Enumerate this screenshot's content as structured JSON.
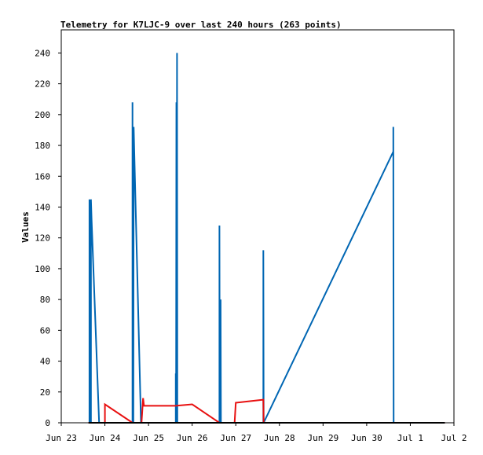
{
  "chart_data": {
    "type": "line",
    "title": "Telemetry for K7LJC-9 over last 240 hours (263 points)",
    "ylabel": "Values",
    "xlabel": "",
    "ylim": [
      0,
      255
    ],
    "xlim": [
      "2024-06-23T00:00",
      "2024-07-02T00:00"
    ],
    "x_ticks": [
      "Jun 23",
      "Jun 24",
      "Jun 25",
      "Jun 26",
      "Jun 27",
      "Jun 28",
      "Jun 29",
      "Jun 30",
      "Jul 1",
      "Jul 2"
    ],
    "y_ticks": [
      0,
      20,
      40,
      60,
      80,
      100,
      120,
      140,
      160,
      180,
      200,
      220,
      240
    ],
    "series": [
      {
        "color": "#0066b3",
        "points": [
          [
            "2024-06-23T15:30",
            0
          ],
          [
            "2024-06-23T15:30",
            145
          ],
          [
            "2024-06-23T15:40",
            0
          ],
          [
            "2024-06-23T16:20",
            0
          ],
          [
            "2024-06-23T16:20",
            145
          ],
          [
            "2024-06-23T16:40",
            132
          ],
          [
            "2024-06-23T20:50",
            0
          ],
          [
            "2024-06-24T15:10",
            0
          ],
          [
            "2024-06-24T15:10",
            208
          ],
          [
            "2024-06-24T15:20",
            0
          ],
          [
            "2024-06-24T15:30",
            32
          ],
          [
            "2024-06-24T15:40",
            0
          ],
          [
            "2024-06-24T15:50",
            192
          ],
          [
            "2024-06-24T16:10",
            175
          ],
          [
            "2024-06-24T19:50",
            0
          ],
          [
            "2024-06-25T15:00",
            0
          ],
          [
            "2024-06-25T15:00",
            32
          ],
          [
            "2024-06-25T15:10",
            0
          ],
          [
            "2024-06-25T15:20",
            208
          ],
          [
            "2024-06-25T15:30",
            0
          ],
          [
            "2024-06-25T15:40",
            240
          ],
          [
            "2024-06-25T15:50",
            0
          ],
          [
            "2024-06-26T15:00",
            0
          ],
          [
            "2024-06-26T15:00",
            128
          ],
          [
            "2024-06-26T15:10",
            0
          ],
          [
            "2024-06-26T15:40",
            80
          ],
          [
            "2024-06-26T15:50",
            0
          ],
          [
            "2024-06-27T15:10",
            0
          ],
          [
            "2024-06-27T15:10",
            112
          ],
          [
            "2024-06-27T15:20",
            0
          ],
          [
            "2024-06-30T14:40",
            176
          ],
          [
            "2024-06-30T14:40",
            192
          ],
          [
            "2024-06-30T14:50",
            0
          ],
          [
            "2024-07-01T19:00",
            0
          ]
        ]
      },
      {
        "color": "#e81010",
        "points": [
          [
            "2024-06-23T15:00",
            0
          ],
          [
            "2024-06-24T00:00",
            0
          ],
          [
            "2024-06-24T00:00",
            12
          ],
          [
            "2024-06-24T15:10",
            0
          ],
          [
            "2024-06-24T20:10",
            0
          ],
          [
            "2024-06-24T21:00",
            16
          ],
          [
            "2024-06-24T21:30",
            11
          ],
          [
            "2024-06-25T15:00",
            11
          ],
          [
            "2024-06-26T00:00",
            12
          ],
          [
            "2024-06-26T15:00",
            0
          ],
          [
            "2024-06-26T23:20",
            0
          ],
          [
            "2024-06-27T00:00",
            13
          ],
          [
            "2024-06-27T15:10",
            15
          ],
          [
            "2024-06-27T15:20",
            0
          ],
          [
            "2024-07-01T19:00",
            0
          ]
        ]
      },
      {
        "color": "#000000",
        "points": [
          [
            "2024-06-23T15:00",
            0
          ],
          [
            "2024-07-01T19:00",
            0
          ]
        ]
      }
    ]
  }
}
